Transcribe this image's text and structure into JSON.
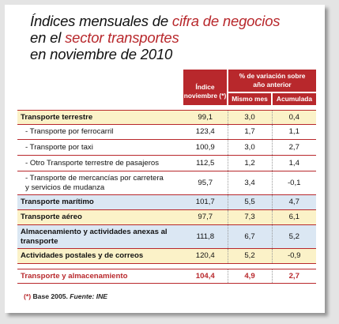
{
  "title": {
    "l1_a": "Índices mensuales de ",
    "l1_b": "cifra de negocios",
    "l2_a": "en el ",
    "l2_b": "sector transportes",
    "l3": "en noviembre de 2010"
  },
  "header": {
    "indice": "Índice",
    "noviembre": "noviembre (*)",
    "variacion": "% de variación sobre año anterior",
    "mismo_mes": "Mismo mes",
    "acumulada": "Acumulada"
  },
  "rows": [
    {
      "label": "Transporte terrestre",
      "indice": "99,1",
      "mes": "3,0",
      "acum": "0,4"
    },
    {
      "label": "- Transporte por ferrocarril",
      "indice": "123,4",
      "mes": "1,7",
      "acum": "1,1"
    },
    {
      "label": "- Transporte por taxi",
      "indice": "100,9",
      "mes": "3,0",
      "acum": "2,7"
    },
    {
      "label": "- Otro Transporte terrestre de pasajeros",
      "indice": "112,5",
      "mes": "1,2",
      "acum": "1,4"
    },
    {
      "label": "- Transporte de mercancías por carretera y servicios de mudanza",
      "indice": "95,7",
      "mes": "3,4",
      "acum": "-0,1"
    },
    {
      "label": "Transporte marítimo",
      "indice": "101,7",
      "mes": "5,5",
      "acum": "4,7"
    },
    {
      "label": "Transporte aéreo",
      "indice": "97,7",
      "mes": "7,3",
      "acum": "6,1"
    },
    {
      "label": "Almacenamiento y actividades anexas al transporte",
      "indice": "111,8",
      "mes": "6,7",
      "acum": "5,2"
    },
    {
      "label": "Actividades postales y de correos",
      "indice": "120,4",
      "mes": "5,2",
      "acum": "-0,9"
    },
    {
      "label": "Transporte y almacenamiento",
      "indice": "104,4",
      "mes": "4,9",
      "acum": "2,7"
    }
  ],
  "footer": {
    "asterisk": "(*)",
    "base": "Base 2005.",
    "fuente": "Fuente: INE"
  },
  "colors": {
    "accent": "#b8282c",
    "yellow_row": "#fbf2c8",
    "blue_row": "#dbe7f3"
  }
}
